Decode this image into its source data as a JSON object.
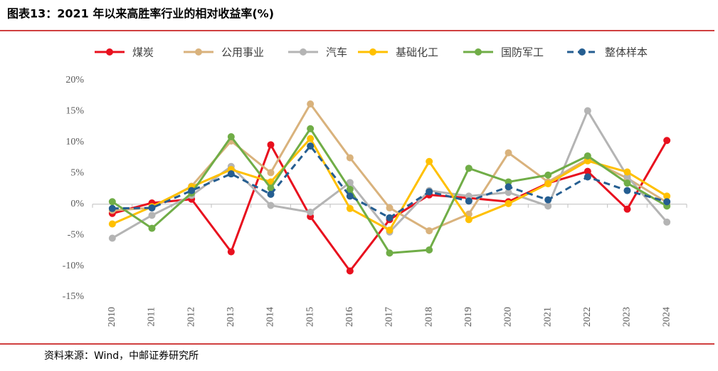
{
  "chart_data": {
    "type": "line",
    "title": "图表13：2021 年以来高胜率行业的相对收益率(%)",
    "source": "资料来源：Wind，中邮证券研究所",
    "categories": [
      "2010",
      "2011",
      "2012",
      "2013",
      "2014",
      "2015",
      "2016",
      "2017",
      "2018",
      "2019",
      "2020",
      "2021",
      "2022",
      "2023",
      "2024"
    ],
    "series": [
      {
        "name": "煤炭",
        "color": "#e8101e",
        "values": [
          -1.5,
          0.2,
          0.8,
          -7.7,
          9.6,
          -2.0,
          -10.8,
          -2.5,
          1.5,
          1.0,
          0.4,
          3.4,
          5.3,
          -0.8,
          10.3
        ]
      },
      {
        "name": "公用事业",
        "color": "#d9b27c",
        "values": [
          -1.0,
          -0.6,
          2.9,
          10.2,
          5.1,
          16.2,
          7.5,
          -0.6,
          -4.3,
          -1.6,
          8.3,
          3.6,
          7.3,
          4.2,
          0.3
        ]
      },
      {
        "name": "汽车",
        "color": "#b4b4b4",
        "values": [
          -5.5,
          -1.8,
          1.4,
          6.1,
          -0.2,
          -1.3,
          3.5,
          -4.5,
          2.2,
          1.3,
          1.9,
          -0.3,
          15.1,
          4.5,
          -2.9
        ]
      },
      {
        "name": "基础化工",
        "color": "#ffc000",
        "values": [
          -3.2,
          -0.4,
          2.8,
          5.6,
          3.6,
          10.6,
          -0.7,
          -4.2,
          6.9,
          -2.5,
          0.1,
          3.3,
          7.0,
          5.2,
          1.3
        ]
      },
      {
        "name": "国防军工",
        "color": "#70ad47",
        "values": [
          0.4,
          -3.9,
          1.8,
          10.9,
          2.6,
          12.2,
          2.4,
          -7.9,
          -7.4,
          5.8,
          3.6,
          4.7,
          7.8,
          3.4,
          -0.3
        ]
      },
      {
        "name": "整体样本",
        "color": "#255e91",
        "line_style": "dashed",
        "values": [
          -0.7,
          -0.6,
          2.2,
          4.9,
          1.6,
          9.4,
          1.3,
          -2.2,
          2.0,
          0.5,
          2.8,
          0.7,
          4.4,
          2.2,
          0.4
        ]
      }
    ],
    "ylim": [
      -15,
      20
    ],
    "yticks": [
      {
        "value": -15,
        "label": "-15%"
      },
      {
        "value": -10,
        "label": "-10%"
      },
      {
        "value": -5,
        "label": "-5%"
      },
      {
        "value": 0,
        "label": "0%"
      },
      {
        "value": 5,
        "label": "5%"
      },
      {
        "value": 10,
        "label": "10%"
      },
      {
        "value": 15,
        "label": "15%"
      },
      {
        "value": 20,
        "label": "20%"
      }
    ],
    "grid": false
  }
}
